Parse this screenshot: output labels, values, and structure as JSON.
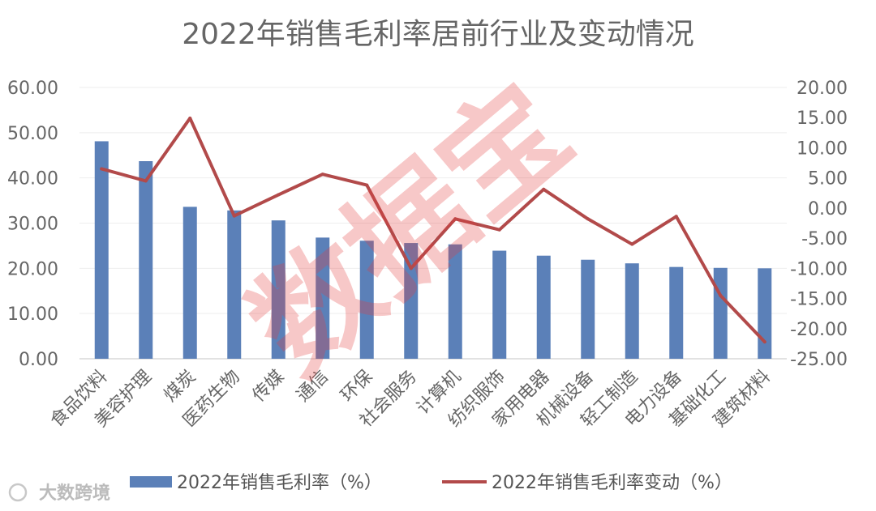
{
  "watermark": "数据宝",
  "logo": {
    "text": "大数跨境"
  },
  "chart_data": {
    "type": "bar+line",
    "title": "2022年销售毛利率居前行业及变动情况",
    "categories": [
      "食品饮料",
      "美容护理",
      "煤炭",
      "医药生物",
      "传媒",
      "通信",
      "环保",
      "社会服务",
      "计算机",
      "纺织服饰",
      "家用电器",
      "机械设备",
      "轻工制造",
      "电力设备",
      "基础化工",
      "建筑材料"
    ],
    "series": [
      {
        "name": "2022年销售毛利率（%）",
        "type": "bar",
        "axis": "left",
        "color": "#5b80b8",
        "values": [
          48.1,
          43.7,
          33.6,
          32.8,
          30.6,
          26.8,
          26.1,
          25.6,
          25.3,
          23.9,
          22.8,
          21.9,
          21.1,
          20.3,
          20.1,
          20.0
        ]
      },
      {
        "name": "2022年销售毛利率变动（%）",
        "type": "line",
        "axis": "right",
        "color": "#b24a4a",
        "values": [
          6.5,
          4.5,
          14.9,
          -1.3,
          2.2,
          5.6,
          3.8,
          -10.0,
          -1.8,
          -3.6,
          3.1,
          -1.8,
          -6.0,
          -1.4,
          -14.5,
          -22.2
        ]
      }
    ],
    "y_left": {
      "min": 0,
      "max": 60,
      "ticks": [
        "0.00",
        "10.00",
        "20.00",
        "30.00",
        "40.00",
        "50.00",
        "60.00"
      ]
    },
    "y_right": {
      "min": -25,
      "max": 20,
      "ticks": [
        "-25.00",
        "-20.00",
        "-15.00",
        "-10.00",
        "-5.00",
        "0.00",
        "5.00",
        "10.00",
        "15.00",
        "20.00"
      ]
    },
    "legend_position": "bottom",
    "grid": true
  }
}
